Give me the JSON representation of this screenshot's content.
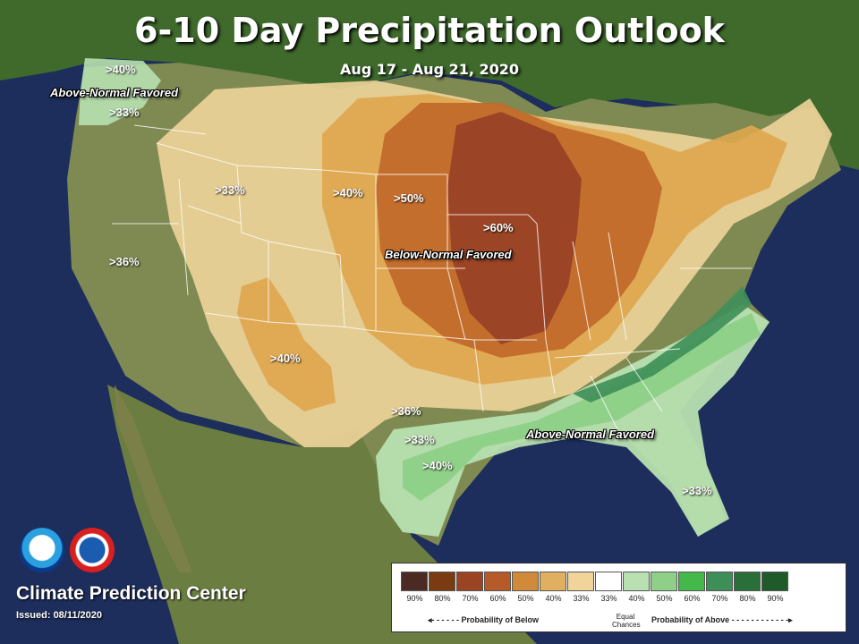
{
  "title": "6-10 Day Precipitation Outlook",
  "subtitle": "Aug 17 - Aug 21, 2020",
  "regions": {
    "below_label": "Below-Normal Favored",
    "above_label_nw": "Above-Normal Favored",
    "above_label_se": "Above-Normal Favored"
  },
  "contour_labels": {
    "nw_a": ">40%",
    "nw_b": ">33%",
    "west_33": ">33%",
    "ca_36": ">36%",
    "plains_40": ">40%",
    "plains_50": ">50%",
    "midwest_60": ">60%",
    "sw_40": ">40%",
    "tx_36": ">36%",
    "gulf_33": ">33%",
    "gulf_40": ">40%",
    "fl_33": ">33%"
  },
  "footer": {
    "org": "Climate Prediction Center",
    "issued": "Issued: 08/11/2020"
  },
  "legend": {
    "ticks": [
      "90%",
      "80%",
      "70%",
      "60%",
      "50%",
      "40%",
      "33%",
      "33%",
      "40%",
      "50%",
      "60%",
      "70%",
      "80%",
      "90%"
    ],
    "colors": [
      "#4a2a22",
      "#7a3a12",
      "#9b4424",
      "#b65a2a",
      "#d08a3a",
      "#e0b060",
      "#f0d49a",
      "#ffffff",
      "#b8e0b0",
      "#8ed088",
      "#44b848",
      "#3e8e58",
      "#2a6e3a",
      "#1f5a2a"
    ],
    "below_label": "Probability of Below",
    "equal_label": "Equal Chances",
    "above_label": "Probability of Above"
  },
  "logos": [
    "noaa-logo",
    "nws-logo"
  ]
}
